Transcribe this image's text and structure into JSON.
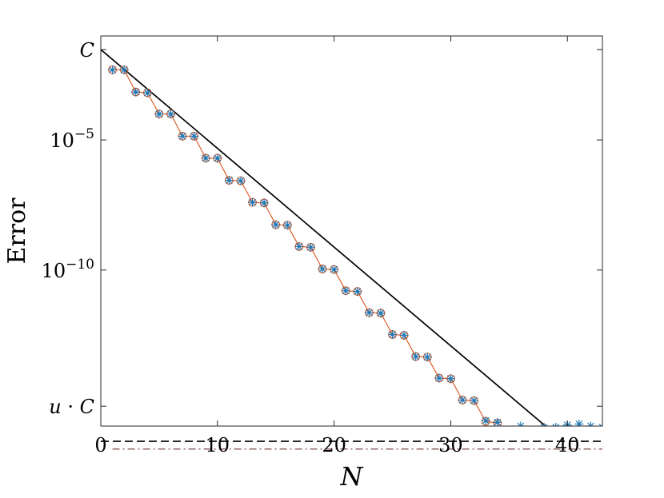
{
  "chart_data": {
    "type": "line",
    "xlabel": "N",
    "ylabel": "Error",
    "xscale": "linear",
    "yscale": "log",
    "xlim": [
      0,
      43
    ],
    "ylim": [
      1e-16,
      0.1
    ],
    "grid": false,
    "x_ticks": [
      {
        "value": 0,
        "label": "0"
      },
      {
        "value": 10,
        "label": "10"
      },
      {
        "value": 20,
        "label": "20"
      },
      {
        "value": 30,
        "label": "30"
      },
      {
        "value": 40,
        "label": "40"
      }
    ],
    "y_ticks": [
      {
        "value": 0.03,
        "label": "C"
      },
      {
        "value": 1e-05,
        "label": "10",
        "exponent": "-5"
      },
      {
        "value": 1e-10,
        "label": "10",
        "exponent": "-10"
      },
      {
        "value": 5.8e-16,
        "label": "u · C",
        "parts": [
          "u",
          " · ",
          "C"
        ]
      }
    ],
    "series": [
      {
        "marker": "asterisk",
        "color": "#1f77b4",
        "x": [
          1,
          2,
          3,
          4,
          5,
          6,
          7,
          8,
          9,
          10,
          11,
          12,
          13,
          14,
          15,
          16,
          17,
          18,
          19,
          20,
          21,
          22,
          23,
          24,
          25,
          26,
          27,
          28,
          29,
          30,
          31,
          32,
          33,
          34,
          35,
          36,
          37,
          38,
          39,
          40,
          41,
          42,
          43
        ],
        "y": [
          0.005,
          0.005,
          0.0007,
          0.00065,
          0.0001,
          0.0001,
          1.4e-05,
          1.4e-05,
          2e-06,
          2e-06,
          2.8e-07,
          2.7e-07,
          4e-08,
          3.8e-08,
          5.5e-09,
          5.3e-09,
          8e-10,
          7.5e-10,
          1.1e-10,
          1.05e-10,
          1.6e-11,
          1.5e-11,
          2.3e-12,
          2.2e-12,
          3.3e-13,
          3.1e-13,
          4.7e-14,
          4.5e-14,
          7e-15,
          6.6e-15,
          1e-15,
          9.5e-16,
          1.6e-16,
          1.4e-16,
          7e-17,
          1e-16,
          7e-17,
          9e-17,
          9e-17,
          1.1e-16,
          1.2e-16,
          1e-16,
          9e-17
        ]
      },
      {
        "marker": "circle-line",
        "color": "#d95319",
        "x": [
          1,
          2,
          3,
          4,
          5,
          6,
          7,
          8,
          9,
          10,
          11,
          12,
          13,
          14,
          15,
          16,
          17,
          18,
          19,
          20,
          21,
          22,
          23,
          24,
          25,
          26,
          27,
          28,
          29,
          30,
          31,
          32,
          33,
          34,
          35,
          36,
          37,
          38,
          39,
          40,
          41,
          42,
          43
        ],
        "y": [
          0.005,
          0.005,
          0.0007,
          0.00065,
          0.0001,
          0.0001,
          1.4e-05,
          1.4e-05,
          2e-06,
          2e-06,
          2.8e-07,
          2.7e-07,
          4e-08,
          3.8e-08,
          5.5e-09,
          5.3e-09,
          8e-10,
          7.5e-10,
          1.1e-10,
          1.05e-10,
          1.6e-11,
          1.5e-11,
          2.3e-12,
          2.2e-12,
          3.3e-13,
          3.1e-13,
          4.7e-14,
          4.5e-14,
          7e-15,
          6.6e-15,
          1e-15,
          9.5e-16,
          1.5e-16,
          1.3e-16,
          5.5e-17,
          5.5e-17,
          5.5e-17,
          5.5e-17,
          5.5e-17,
          5.5e-17,
          4.8e-17,
          5.2e-17,
          5.5e-17
        ]
      },
      {
        "style": "solid",
        "color": "#000000",
        "x": [
          0,
          43
        ],
        "y": [
          0.03,
          1.4e-18
        ]
      }
    ],
    "reference_lines": [
      {
        "style": "dashed",
        "color": "#000000",
        "y": 2.6e-17
      },
      {
        "style": "dashdot",
        "color": "#6b2e2e",
        "y": 1.3e-17
      }
    ],
    "shaded_region": {
      "color": "#fadcdc",
      "y": [
        5e-18,
        2.6e-17
      ]
    }
  }
}
